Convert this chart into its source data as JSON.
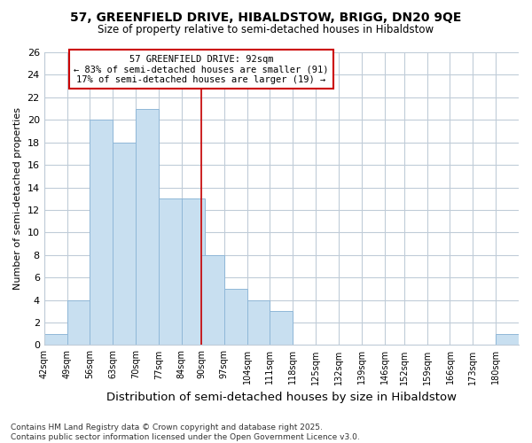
{
  "title": "57, GREENFIELD DRIVE, HIBALDSTOW, BRIGG, DN20 9QE",
  "subtitle": "Size of property relative to semi-detached houses in Hibaldstow",
  "xlabel": "Distribution of semi-detached houses by size in Hibaldstow",
  "ylabel": "Number of semi-detached properties",
  "bin_labels": [
    "42sqm",
    "49sqm",
    "56sqm",
    "63sqm",
    "70sqm",
    "77sqm",
    "84sqm",
    "90sqm",
    "97sqm",
    "104sqm",
    "111sqm",
    "118sqm",
    "125sqm",
    "132sqm",
    "139sqm",
    "146sqm",
    "152sqm",
    "159sqm",
    "166sqm",
    "173sqm",
    "180sqm"
  ],
  "bin_edges": [
    42,
    49,
    56,
    63,
    70,
    77,
    84,
    90,
    97,
    104,
    111,
    118,
    125,
    132,
    139,
    146,
    152,
    159,
    166,
    173,
    180
  ],
  "bar_heights": [
    1,
    4,
    20,
    18,
    21,
    13,
    13,
    8,
    5,
    4,
    3,
    0,
    0,
    0,
    0,
    0,
    0,
    0,
    0,
    0,
    1
  ],
  "bar_color": "#c8dff0",
  "bar_edge_color": "#90b8d8",
  "property_line_x": 90,
  "property_size": "92sqm",
  "pct_smaller": 83,
  "n_smaller": 91,
  "pct_larger": 17,
  "n_larger": 19,
  "annotation_box_color": "#cc0000",
  "vline_color": "#cc0000",
  "ylim": [
    0,
    26
  ],
  "yticks": [
    0,
    2,
    4,
    6,
    8,
    10,
    12,
    14,
    16,
    18,
    20,
    22,
    24,
    26
  ],
  "grid_color": "#c0ccd8",
  "bg_color": "#ffffff",
  "footer": "Contains HM Land Registry data © Crown copyright and database right 2025.\nContains public sector information licensed under the Open Government Licence v3.0."
}
